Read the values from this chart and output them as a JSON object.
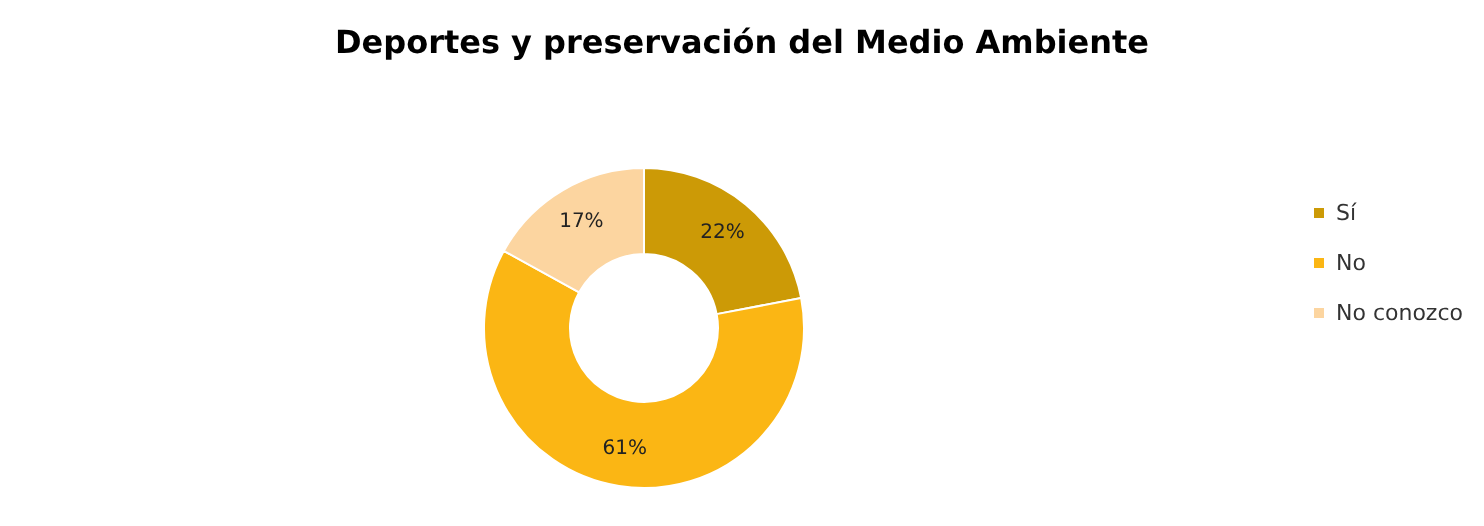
{
  "chart_data": {
    "type": "donut",
    "title": "Deportes y preservación del Medio Ambiente",
    "categories": [
      "Sí",
      "No",
      "No conozco"
    ],
    "values": [
      22,
      61,
      17
    ],
    "colors": [
      "#cc9a06",
      "#fbb614",
      "#fcd5a0"
    ],
    "value_labels": [
      "22%",
      "61%",
      "17%"
    ],
    "legend": "right"
  }
}
